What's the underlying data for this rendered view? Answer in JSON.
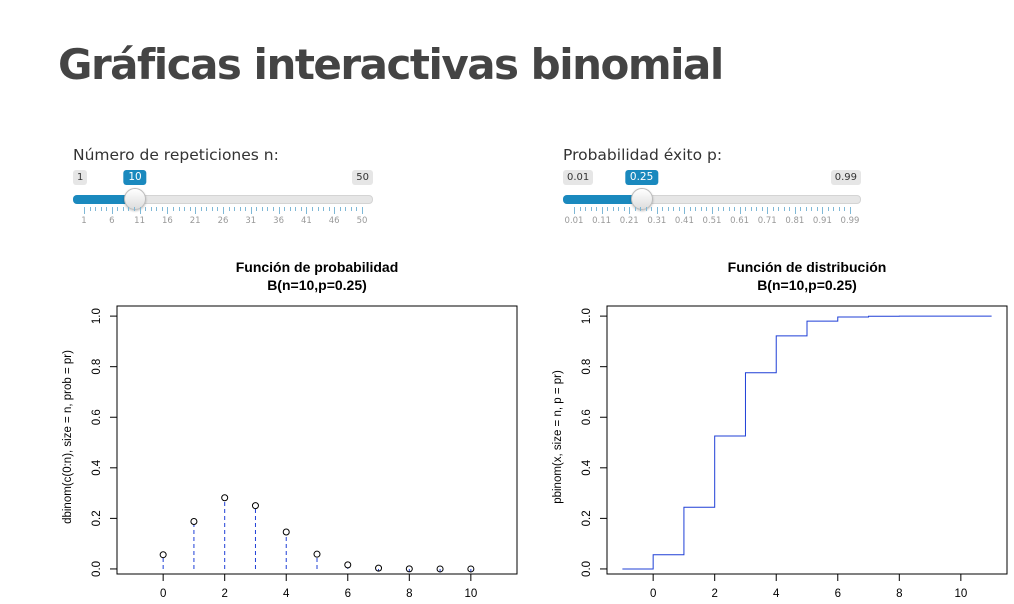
{
  "page": {
    "title": "Gráficas interactivas binomial"
  },
  "slider_n": {
    "label": "Número de repeticiones n:",
    "min": 1,
    "max": 50,
    "value": 10,
    "min_label": "1",
    "max_label": "50",
    "value_label": "10",
    "tick_labels": [
      "1",
      "6",
      "11",
      "16",
      "21",
      "26",
      "31",
      "36",
      "41",
      "46",
      "50"
    ]
  },
  "slider_p": {
    "label": "Probabilidad éxito p:",
    "min": 0.01,
    "max": 0.99,
    "value": 0.25,
    "min_label": "0.01",
    "max_label": "0.99",
    "value_label": "0.25",
    "tick_labels": [
      "0.01",
      "0.11",
      "0.21",
      "0.31",
      "0.41",
      "0.51",
      "0.61",
      "0.71",
      "0.81",
      "0.91",
      "0.99"
    ]
  },
  "colors": {
    "accent": "#1a89be",
    "series": "#1f3fd6"
  },
  "chart_data": [
    {
      "type": "scatter",
      "title": "Función de probabilidad",
      "subtitle": "B(n=10,p=0.25)",
      "xlabel": "",
      "ylabel": "dbinom(c(0:n), size = n, prob = pr)",
      "xlim": [
        -1.5,
        11.5
      ],
      "ylim": [
        -0.02,
        1.04
      ],
      "xticks": [
        0,
        2,
        4,
        6,
        8,
        10
      ],
      "xtick_labels": [
        "0",
        "2",
        "4",
        "6",
        "8",
        "10"
      ],
      "yticks": [
        0.0,
        0.2,
        0.4,
        0.6,
        0.8,
        1.0
      ],
      "ytick_labels": [
        "0.0",
        "0.2",
        "0.4",
        "0.6",
        "0.8",
        "1.0"
      ],
      "x": [
        0,
        1,
        2,
        3,
        4,
        5,
        6,
        7,
        8,
        9,
        10
      ],
      "y": [
        0.0563,
        0.1877,
        0.2816,
        0.2503,
        0.146,
        0.0584,
        0.0162,
        0.0031,
        0.0004,
        0.0,
        0.0
      ],
      "vertical_lines": true
    },
    {
      "type": "line",
      "title": "Función de distribución",
      "subtitle": "B(n=10,p=0.25)",
      "xlabel": "",
      "ylabel": "pbinom(x, size = n, p = pr)",
      "xlim": [
        -1.5,
        11.5
      ],
      "ylim": [
        -0.02,
        1.04
      ],
      "xticks": [
        0,
        2,
        4,
        6,
        8,
        10
      ],
      "xtick_labels": [
        "0",
        "2",
        "4",
        "6",
        "8",
        "10"
      ],
      "yticks": [
        0.0,
        0.2,
        0.4,
        0.6,
        0.8,
        1.0
      ],
      "ytick_labels": [
        "0.0",
        "0.2",
        "0.4",
        "0.6",
        "0.8",
        "1.0"
      ],
      "step": true,
      "x": [
        -1,
        0,
        1,
        2,
        3,
        4,
        5,
        6,
        7,
        8,
        9,
        10,
        11
      ],
      "y": [
        0.0,
        0.0563,
        0.244,
        0.5256,
        0.7759,
        0.9219,
        0.9803,
        0.9965,
        0.9996,
        1.0,
        1.0,
        1.0,
        1.0
      ]
    }
  ]
}
